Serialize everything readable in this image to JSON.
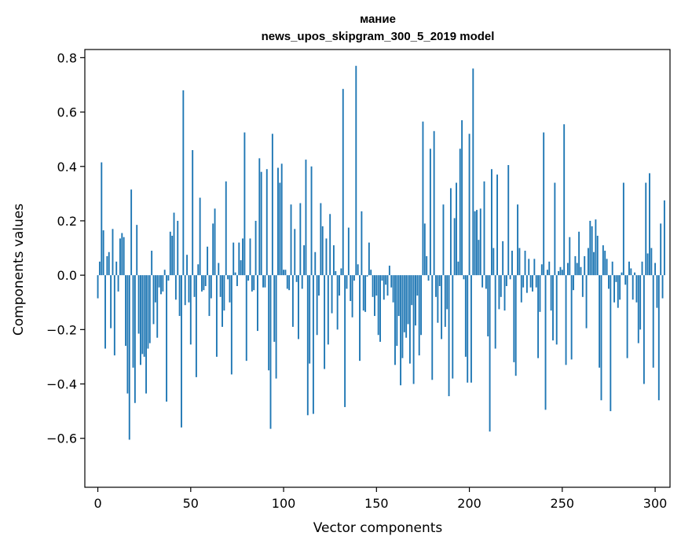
{
  "chart_data": {
    "type": "bar",
    "title_line1": "мание",
    "title_line2": "news_upos_skipgram_300_5_2019 model",
    "xlabel": "Vector components",
    "ylabel": "Components values",
    "xlim": [
      -7,
      308
    ],
    "ylim": [
      -0.78,
      0.83
    ],
    "xticks": [
      0,
      50,
      100,
      150,
      200,
      250,
      300
    ],
    "yticks": [
      -0.6,
      -0.4,
      -0.2,
      0.0,
      0.2,
      0.4,
      0.6,
      0.8
    ],
    "xtick_labels": [
      "0",
      "50",
      "100",
      "150",
      "200",
      "250",
      "300"
    ],
    "ytick_labels": [
      "−0.6",
      "−0.4",
      "−0.2",
      "0.0",
      "0.2",
      "0.4",
      "0.6",
      "0.8"
    ],
    "bar_color": "#1f77b4",
    "values": [
      -0.085,
      0.05,
      0.415,
      0.165,
      -0.27,
      0.07,
      0.085,
      -0.195,
      0.17,
      -0.295,
      0.05,
      -0.06,
      0.135,
      0.155,
      0.14,
      -0.26,
      -0.435,
      -0.605,
      0.315,
      -0.34,
      -0.47,
      0.185,
      -0.215,
      -0.33,
      -0.29,
      -0.3,
      -0.435,
      -0.27,
      -0.25,
      0.09,
      -0.18,
      -0.1,
      -0.23,
      -0.045,
      -0.07,
      -0.06,
      0.02,
      -0.465,
      -0.02,
      0.16,
      0.145,
      0.23,
      -0.09,
      0.2,
      -0.15,
      -0.56,
      0.68,
      -0.11,
      0.075,
      -0.1,
      -0.255,
      0.46,
      -0.08,
      -0.375,
      0.04,
      0.285,
      -0.06,
      -0.055,
      -0.04,
      0.105,
      -0.15,
      -0.085,
      0.19,
      0.245,
      -0.3,
      0.045,
      -0.08,
      -0.19,
      -0.13,
      0.345,
      -0.015,
      -0.1,
      -0.365,
      0.12,
      0.01,
      -0.04,
      0.12,
      0.055,
      0.135,
      0.525,
      -0.315,
      -0.02,
      0.135,
      -0.06,
      -0.055,
      0.2,
      -0.205,
      0.43,
      0.38,
      -0.045,
      -0.045,
      0.39,
      -0.35,
      -0.565,
      0.52,
      -0.245,
      -0.38,
      0.395,
      0.34,
      0.41,
      0.02,
      0.02,
      -0.05,
      -0.055,
      0.26,
      -0.19,
      0.17,
      -0.025,
      -0.235,
      0.265,
      -0.05,
      0.11,
      0.425,
      -0.515,
      -0.325,
      0.4,
      -0.51,
      0.085,
      -0.22,
      -0.075,
      0.265,
      0.18,
      -0.345,
      0.135,
      -0.255,
      0.225,
      -0.14,
      0.11,
      0.015,
      -0.2,
      -0.075,
      0.025,
      0.685,
      -0.485,
      -0.05,
      0.175,
      -0.095,
      -0.155,
      -0.02,
      0.77,
      0.04,
      -0.315,
      0.235,
      -0.13,
      -0.135,
      -0.005,
      0.12,
      0.02,
      -0.08,
      -0.15,
      -0.075,
      -0.22,
      -0.245,
      -0.02,
      -0.09,
      -0.035,
      -0.075,
      0.035,
      -0.045,
      -0.1,
      -0.33,
      -0.26,
      -0.15,
      -0.405,
      -0.305,
      -0.21,
      -0.23,
      -0.18,
      -0.325,
      -0.11,
      -0.4,
      -0.185,
      -0.075,
      -0.295,
      -0.22,
      0.565,
      0.19,
      0.07,
      -0.02,
      0.465,
      -0.385,
      0.53,
      -0.08,
      -0.175,
      -0.04,
      -0.235,
      0.26,
      -0.19,
      -0.125,
      -0.445,
      0.32,
      -0.38,
      0.21,
      0.34,
      0.05,
      0.465,
      0.57,
      -0.015,
      -0.3,
      -0.395,
      0.52,
      -0.395,
      0.76,
      0.235,
      0.24,
      0.13,
      0.245,
      -0.045,
      0.345,
      -0.05,
      -0.225,
      -0.575,
      0.39,
      0.1,
      -0.27,
      0.37,
      -0.125,
      -0.08,
      0.125,
      -0.13,
      -0.04,
      0.405,
      -0.015,
      0.09,
      -0.32,
      -0.37,
      0.26,
      0.1,
      -0.1,
      -0.045,
      0.09,
      -0.065,
      0.06,
      -0.045,
      -0.06,
      0.06,
      -0.045,
      -0.305,
      -0.135,
      0.04,
      0.525,
      -0.495,
      0.02,
      0.05,
      -0.13,
      -0.24,
      0.34,
      -0.255,
      0.015,
      0.03,
      0.02,
      0.555,
      -0.33,
      0.045,
      0.14,
      -0.31,
      -0.055,
      0.07,
      0.045,
      0.16,
      0.03,
      -0.08,
      0.07,
      -0.195,
      0.1,
      0.2,
      0.18,
      0.085,
      0.205,
      0.145,
      -0.34,
      -0.46,
      0.11,
      0.09,
      0.06,
      -0.05,
      -0.5,
      0.05,
      -0.1,
      -0.025,
      -0.12,
      -0.09,
      0.01,
      0.34,
      -0.035,
      -0.305,
      0.05,
      0.025,
      -0.09,
      0.01,
      -0.1,
      -0.25,
      -0.2,
      0.05,
      -0.4,
      0.34,
      0.08,
      0.375,
      0.1,
      -0.34,
      0.045,
      -0.12,
      -0.46,
      0.19,
      -0.085,
      0.275
    ]
  }
}
